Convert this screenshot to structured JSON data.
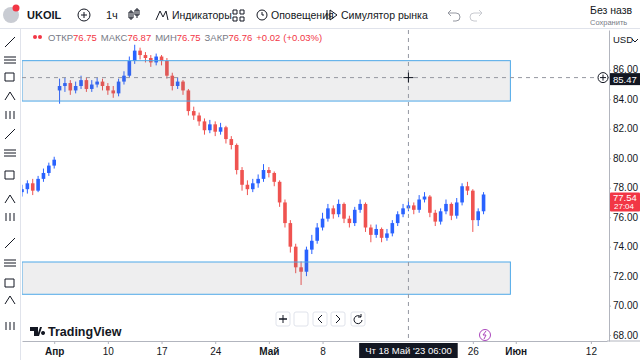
{
  "toolbar": {
    "symbol": "UKOIL",
    "interval": "1ч",
    "indicators": "Индикаторы",
    "alerts": "Оповещения",
    "replay": "Симулятор рынка",
    "layout_name": "Без назв",
    "save": "Сохранить"
  },
  "watermark": "TradingView",
  "chart_data": {
    "type": "candlestick",
    "grid": false,
    "currency": "USD",
    "ohlc_legend": {
      "labels": [
        "ОТКР",
        "МАКС",
        "МИН",
        "ЗАКР"
      ],
      "values": [
        76.75,
        76.87,
        76.75,
        76.76
      ],
      "change": {
        "value": 0.02,
        "label": "+0.02"
      },
      "change_pct": {
        "value": 0.03,
        "label": "(+0.03%)"
      }
    },
    "categories": [
      null,
      null,
      null,
      null,
      null,
      null,
      "Апр",
      null,
      null,
      null,
      null,
      null,
      null,
      null,
      null,
      null,
      "10",
      null,
      null,
      null,
      null,
      null,
      null,
      null,
      null,
      null,
      "17",
      null,
      null,
      null,
      null,
      null,
      null,
      null,
      null,
      null,
      "24",
      null,
      null,
      null,
      null,
      null,
      null,
      null,
      null,
      null,
      "Май",
      null,
      null,
      null,
      null,
      null,
      null,
      null,
      null,
      null,
      "8",
      null,
      null,
      null,
      null,
      null,
      null,
      null,
      null,
      null,
      null,
      null,
      null,
      null,
      null,
      null,
      null,
      null,
      null,
      null,
      null,
      null,
      null,
      null,
      null,
      null,
      null,
      null,
      "26",
      null,
      null,
      null,
      null,
      null,
      null,
      null,
      "Июн",
      null,
      null,
      null,
      null,
      null,
      null,
      null,
      null,
      null,
      null,
      null,
      null,
      null,
      "12",
      null,
      null,
      null
    ],
    "open": [
      77.7,
      77.9,
      78.3,
      77.8,
      78.6,
      79.0,
      79.5,
      84.6,
      84.9,
      85.1,
      84.6,
      84.9,
      85.3,
      84.7,
      85.0,
      85.2,
      84.9,
      84.6,
      84.4,
      85.2,
      85.6,
      86.6,
      87.3,
      87.0,
      86.8,
      86.5,
      86.9,
      86.6,
      85.6,
      84.9,
      85.2,
      84.6,
      83.2,
      82.9,
      82.5,
      81.9,
      82.3,
      81.8,
      82.1,
      81.3,
      80.9,
      79.2,
      78.2,
      77.9,
      78.3,
      78.6,
      79.2,
      79.0,
      78.4,
      77.0,
      75.6,
      74.0,
      72.6,
      72.3,
      73.8,
      74.4,
      75.3,
      75.9,
      76.6,
      76.2,
      76.9,
      75.9,
      75.6,
      76.5,
      76.9,
      75.3,
      74.8,
      75.2,
      74.6,
      74.9,
      75.6,
      76.2,
      76.6,
      76.8,
      76.5,
      77.2,
      77.4,
      76.3,
      75.7,
      76.4,
      76.9,
      76.1,
      77.0,
      78.1,
      77.8,
      75.8,
      76.4,
      null,
      null,
      null,
      null,
      null,
      null,
      null,
      null,
      null,
      null,
      null,
      null,
      null,
      null,
      null,
      null,
      null,
      null,
      null,
      null,
      null,
      null,
      null
    ],
    "high": [
      78.2,
      78.5,
      78.6,
      78.8,
      79.3,
      79.7,
      80.1,
      85.4,
      85.5,
      85.3,
      85.2,
      85.6,
      85.5,
      85.3,
      85.5,
      85.4,
      85.1,
      84.9,
      85.4,
      85.9,
      86.9,
      87.7,
      87.5,
      87.2,
      87.0,
      87.1,
      87.0,
      86.8,
      85.8,
      85.5,
      85.3,
      84.7,
      83.5,
      83.1,
      82.7,
      82.6,
      82.5,
      82.4,
      82.2,
      81.5,
      81.0,
      79.4,
      78.5,
      78.6,
      78.9,
      79.6,
      79.4,
      79.1,
      78.5,
      77.2,
      75.8,
      74.2,
      73.0,
      74.0,
      74.8,
      75.6,
      76.3,
      76.9,
      76.8,
      77.2,
      77.0,
      76.1,
      76.7,
      77.2,
      77.0,
      75.5,
      75.5,
      75.3,
      75.2,
      75.8,
      76.4,
      76.9,
      77.1,
      77.0,
      77.5,
      77.7,
      77.5,
      76.5,
      76.6,
      77.2,
      77.0,
      77.3,
      78.3,
      78.4,
      77.9,
      76.6,
      77.7,
      null,
      null,
      null,
      null,
      null,
      null,
      null,
      null,
      null,
      null,
      null,
      null,
      null,
      null,
      null,
      null,
      null,
      null,
      null,
      null,
      null,
      null,
      null
    ],
    "low": [
      77.4,
      77.6,
      77.5,
      77.7,
      78.4,
      78.8,
      79.3,
      83.7,
      84.5,
      84.3,
      84.4,
      84.7,
      84.5,
      84.5,
      84.8,
      84.6,
      84.3,
      84.1,
      84.2,
      85.0,
      85.5,
      86.4,
      86.7,
      86.5,
      86.2,
      86.3,
      86.3,
      85.4,
      84.6,
      84.7,
      84.3,
      82.9,
      82.6,
      82.2,
      81.6,
      81.7,
      81.5,
      81.6,
      81.0,
      80.6,
      78.9,
      77.8,
      77.5,
      77.7,
      78.0,
      78.4,
      78.7,
      78.1,
      76.7,
      75.3,
      73.6,
      72.2,
      71.4,
      72.0,
      73.5,
      74.2,
      75.1,
      75.7,
      75.9,
      76.0,
      75.6,
      75.3,
      75.4,
      76.3,
      75.0,
      74.3,
      74.6,
      74.3,
      74.4,
      74.7,
      75.4,
      76.0,
      76.4,
      76.2,
      76.3,
      77.0,
      76.0,
      75.4,
      75.5,
      76.2,
      75.8,
      75.9,
      76.8,
      77.5,
      75.0,
      75.4,
      76.2,
      null,
      null,
      null,
      null,
      null,
      null,
      null,
      null,
      null,
      null,
      null,
      null,
      null,
      null,
      null,
      null,
      null,
      null,
      null,
      null,
      null,
      null,
      null
    ],
    "close": [
      77.9,
      78.3,
      77.8,
      78.6,
      79.0,
      79.5,
      79.9,
      84.9,
      85.1,
      84.6,
      84.9,
      85.3,
      84.7,
      85.0,
      85.2,
      84.9,
      84.6,
      84.4,
      85.2,
      85.6,
      86.6,
      87.3,
      87.0,
      86.8,
      86.5,
      86.9,
      86.6,
      85.6,
      84.9,
      85.2,
      84.6,
      83.2,
      82.9,
      82.5,
      81.9,
      82.3,
      81.8,
      82.1,
      81.3,
      80.9,
      79.2,
      78.2,
      77.9,
      78.3,
      78.6,
      79.2,
      79.0,
      78.4,
      77.0,
      75.6,
      74.0,
      72.6,
      72.3,
      73.8,
      74.4,
      75.3,
      75.9,
      76.6,
      76.2,
      76.9,
      75.9,
      75.6,
      76.5,
      76.9,
      75.3,
      74.8,
      75.2,
      74.6,
      74.9,
      75.6,
      76.2,
      76.6,
      76.8,
      76.5,
      77.2,
      77.4,
      76.3,
      75.7,
      76.4,
      76.9,
      76.1,
      77.0,
      78.1,
      77.8,
      75.8,
      76.4,
      77.54,
      null,
      null,
      null,
      null,
      null,
      null,
      null,
      null,
      null,
      null,
      null,
      null,
      null,
      null,
      null,
      null,
      null,
      null,
      null,
      null,
      null,
      null,
      null
    ],
    "ylim": [
      67.6,
      88.7
    ],
    "yticks": [
      {
        "value": 68,
        "label": "68.00"
      },
      {
        "value": 70,
        "label": "70.00"
      },
      {
        "value": 72,
        "label": "72.00"
      },
      {
        "value": 74,
        "label": "74.00"
      },
      {
        "value": 76,
        "label": "76.00"
      },
      {
        "value": 78,
        "label": "78.00"
      },
      {
        "value": 80,
        "label": "80.00"
      },
      {
        "value": 82,
        "label": "82.00"
      },
      {
        "value": 84,
        "label": "84.00"
      },
      {
        "value": 86,
        "label": "86.00"
      }
    ],
    "zones": [
      {
        "x": [
          0,
          91
        ],
        "y": [
          83.88,
          86.62
        ]
      },
      {
        "x": [
          0,
          91
        ],
        "y": [
          70.77,
          72.96
        ]
      }
    ],
    "crosshair": {
      "x": 72,
      "y": 85.47,
      "label": "Чт 18 Май '23 06:00"
    },
    "last_price": {
      "value": 77.54,
      "countdown": "27:04"
    }
  }
}
